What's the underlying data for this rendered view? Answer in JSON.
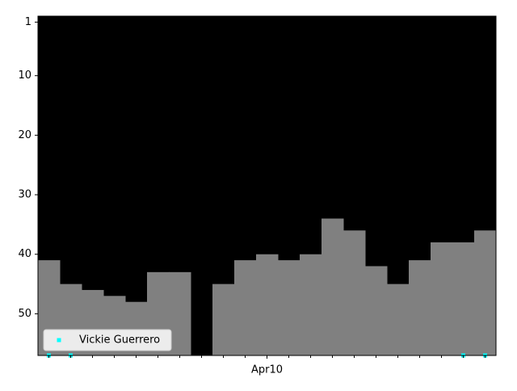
{
  "chart_data": {
    "type": "bar",
    "categories": [
      null,
      null,
      null,
      null,
      null,
      null,
      null,
      null,
      null,
      null,
      "Apr10",
      null,
      null,
      null,
      null,
      null,
      null,
      null,
      null,
      null,
      null
    ],
    "values": [
      41,
      45,
      46,
      47,
      48,
      43,
      43,
      null,
      45,
      41,
      40,
      41,
      40,
      34,
      36,
      42,
      45,
      41,
      38,
      38,
      36
    ],
    "color": "#808080",
    "series": [
      {
        "name": "Vickie Guerrero",
        "color": "#00ffff",
        "values": [
          57,
          57,
          null,
          null,
          null,
          null,
          null,
          null,
          null,
          null,
          null,
          null,
          null,
          null,
          null,
          null,
          null,
          null,
          null,
          57,
          57
        ]
      }
    ],
    "ylim": [
      57,
      0
    ],
    "yticks": [
      1,
      10,
      20,
      30,
      40,
      50
    ],
    "legend": "lower left",
    "background": "#000000"
  }
}
